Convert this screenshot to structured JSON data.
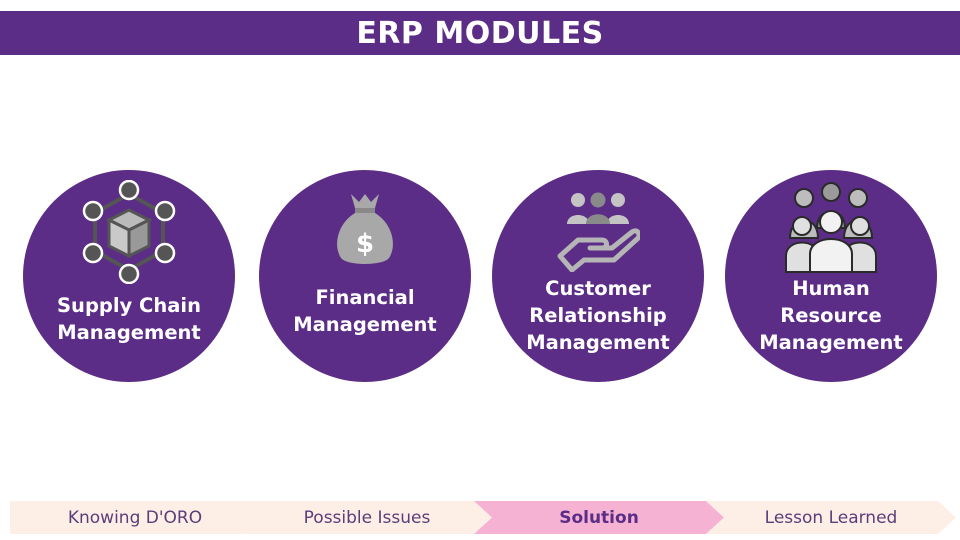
{
  "title": "ERP MODULES",
  "modules": [
    {
      "label": "Supply Chain\nManagement",
      "icon": "supply-chain-network-icon"
    },
    {
      "label": "Financial\nManagement",
      "icon": "money-bag-icon"
    },
    {
      "label": "Customer\nRelationship\nManagement",
      "icon": "customer-hand-icon"
    },
    {
      "label": "Human\nResource\nManagement",
      "icon": "people-group-icon"
    }
  ],
  "nav": [
    {
      "label": "Knowing D'ORO",
      "active": false
    },
    {
      "label": "Possible Issues",
      "active": false
    },
    {
      "label": "Solution",
      "active": true
    },
    {
      "label": "Lesson Learned",
      "active": false
    }
  ],
  "colors": {
    "primary": "#5b2d86",
    "nav_light": "#fdeee6",
    "nav_active": "#f5b2d3",
    "icon_gray": "#a8a8a8"
  }
}
